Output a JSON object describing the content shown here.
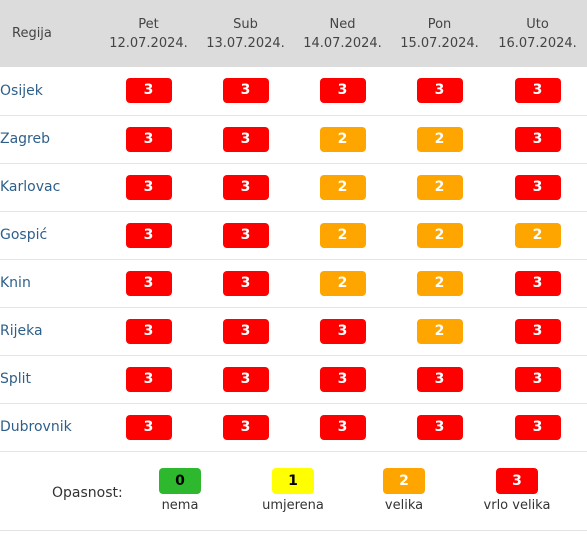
{
  "table": {
    "region_header": "Regija",
    "days": [
      {
        "name": "Pet",
        "date": "12.07.2024."
      },
      {
        "name": "Sub",
        "date": "13.07.2024."
      },
      {
        "name": "Ned",
        "date": "14.07.2024."
      },
      {
        "name": "Pon",
        "date": "15.07.2024."
      },
      {
        "name": "Uto",
        "date": "16.07.2024."
      }
    ],
    "rows": [
      {
        "region": "Osijek",
        "levels": [
          "3",
          "3",
          "3",
          "3",
          "3"
        ]
      },
      {
        "region": "Zagreb",
        "levels": [
          "3",
          "3",
          "2",
          "2",
          "3"
        ]
      },
      {
        "region": "Karlovac",
        "levels": [
          "3",
          "3",
          "2",
          "2",
          "3"
        ]
      },
      {
        "region": "Gospić",
        "levels": [
          "3",
          "3",
          "2",
          "2",
          "2"
        ]
      },
      {
        "region": "Knin",
        "levels": [
          "3",
          "3",
          "2",
          "2",
          "3"
        ]
      },
      {
        "region": "Rijeka",
        "levels": [
          "3",
          "3",
          "3",
          "2",
          "3"
        ]
      },
      {
        "region": "Split",
        "levels": [
          "3",
          "3",
          "3",
          "3",
          "3"
        ]
      },
      {
        "region": "Dubrovnik",
        "levels": [
          "3",
          "3",
          "3",
          "3",
          "3"
        ]
      }
    ]
  },
  "legend": {
    "title": "Opasnost:",
    "items": [
      {
        "value": "0",
        "label": "nema"
      },
      {
        "value": "1",
        "label": "umjerena"
      },
      {
        "value": "2",
        "label": "velika"
      },
      {
        "value": "3",
        "label": "vrlo velika"
      }
    ]
  },
  "level_colors": {
    "0": {
      "bg": "#2eb82e",
      "fg": "#000000"
    },
    "1": {
      "bg": "#ffff00",
      "fg": "#000000"
    },
    "2": {
      "bg": "#ffa500",
      "fg": "#ffffff"
    },
    "3": {
      "bg": "#ff0000",
      "fg": "#ffffff"
    }
  }
}
